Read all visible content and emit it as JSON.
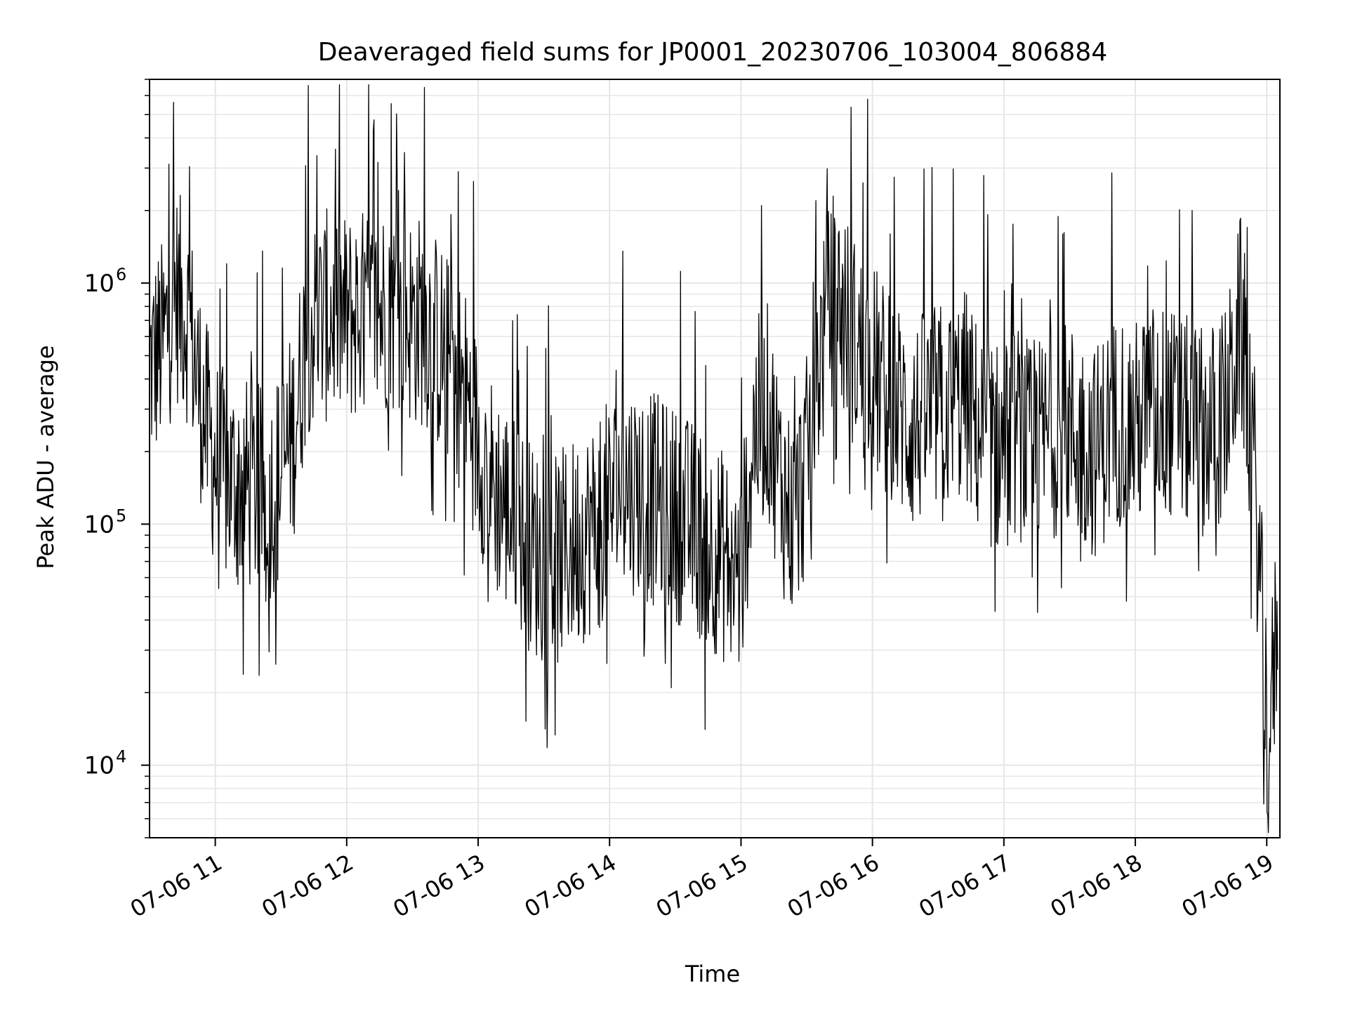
{
  "chart_data": {
    "type": "line",
    "title": "Deaveraged field sums for JP0001_20230706_103004_806884",
    "xlabel": "Time",
    "ylabel": "Peak ADU - average",
    "x_start": "2023-07-06T10:30:04",
    "x_end": "2023-07-06T19:05:00",
    "xlim": [
      "2023-07-06T10:30:00",
      "2023-07-06T19:06:00"
    ],
    "ylim": [
      5000,
      7000000
    ],
    "y_scale": "log",
    "grid": true,
    "legend": "none",
    "line_color": "#000000",
    "x_tick_labels": [
      "07-06 11",
      "07-06 12",
      "07-06 13",
      "07-06 14",
      "07-06 15",
      "07-06 16",
      "07-06 17",
      "07-06 18",
      "07-06 19"
    ],
    "x_tick_times": [
      "2023-07-06T11:00",
      "2023-07-06T12:00",
      "2023-07-06T13:00",
      "2023-07-06T14:00",
      "2023-07-06T15:00",
      "2023-07-06T16:00",
      "2023-07-06T17:00",
      "2023-07-06T18:00",
      "2023-07-06T19:00"
    ],
    "y_tick_labels": [
      {
        "base": "10",
        "exp": "4",
        "value": 10000
      },
      {
        "base": "10",
        "exp": "5",
        "value": 100000
      },
      {
        "base": "10",
        "exp": "6",
        "value": 1000000
      }
    ],
    "series": [
      {
        "x": [
          "10:30",
          "10:36",
          "10:42",
          "10:48",
          "10:52",
          "10:56",
          "11:00",
          "11:06",
          "11:12",
          "11:18",
          "11:24",
          "11:30",
          "11:36",
          "11:42",
          "11:48",
          "11:54",
          "12:00",
          "12:06",
          "12:12",
          "12:18",
          "12:24",
          "12:30",
          "12:36",
          "12:42",
          "12:48",
          "12:54",
          "13:00",
          "13:06",
          "13:12",
          "13:18",
          "13:24",
          "13:30",
          "13:36",
          "13:42",
          "13:48",
          "13:54",
          "14:00",
          "14:06",
          "14:12",
          "14:18",
          "14:24",
          "14:30",
          "14:36",
          "14:42",
          "14:48",
          "14:54",
          "15:00",
          "15:06",
          "15:12",
          "15:18",
          "15:24",
          "15:30",
          "15:36",
          "15:42",
          "15:48",
          "15:54",
          "16:00",
          "16:06",
          "16:12",
          "16:18",
          "16:24",
          "16:30",
          "16:36",
          "16:42",
          "16:48",
          "16:54",
          "17:00",
          "17:06",
          "17:12",
          "17:18",
          "17:24",
          "17:30",
          "17:36",
          "17:42",
          "17:48",
          "17:54",
          "18:00",
          "18:06",
          "18:12",
          "18:18",
          "18:24",
          "18:30",
          "18:36",
          "18:42",
          "18:48",
          "18:54",
          "19:00",
          "19:03",
          "19:05"
        ],
        "y": [
          450000,
          550000,
          900000,
          700000,
          400000,
          250000,
          180000,
          150000,
          150000,
          140000,
          130000,
          160000,
          250000,
          650000,
          700000,
          750000,
          700000,
          750000,
          700000,
          800000,
          750000,
          700000,
          700000,
          550000,
          450000,
          350000,
          220000,
          150000,
          120000,
          100000,
          80000,
          70000,
          70000,
          80000,
          90000,
          100000,
          120000,
          150000,
          140000,
          130000,
          120000,
          110000,
          100000,
          90000,
          80000,
          70000,
          60000,
          250000,
          300000,
          150000,
          100000,
          180000,
          500000,
          900000,
          700000,
          500000,
          450000,
          350000,
          300000,
          250000,
          280000,
          300000,
          300000,
          350000,
          250000,
          220000,
          200000,
          250000,
          200000,
          220000,
          250000,
          250000,
          220000,
          200000,
          250000,
          280000,
          250000,
          300000,
          300000,
          280000,
          260000,
          250000,
          250000,
          300000,
          700000,
          200000,
          15000,
          20000,
          50000
        ]
      }
    ]
  }
}
